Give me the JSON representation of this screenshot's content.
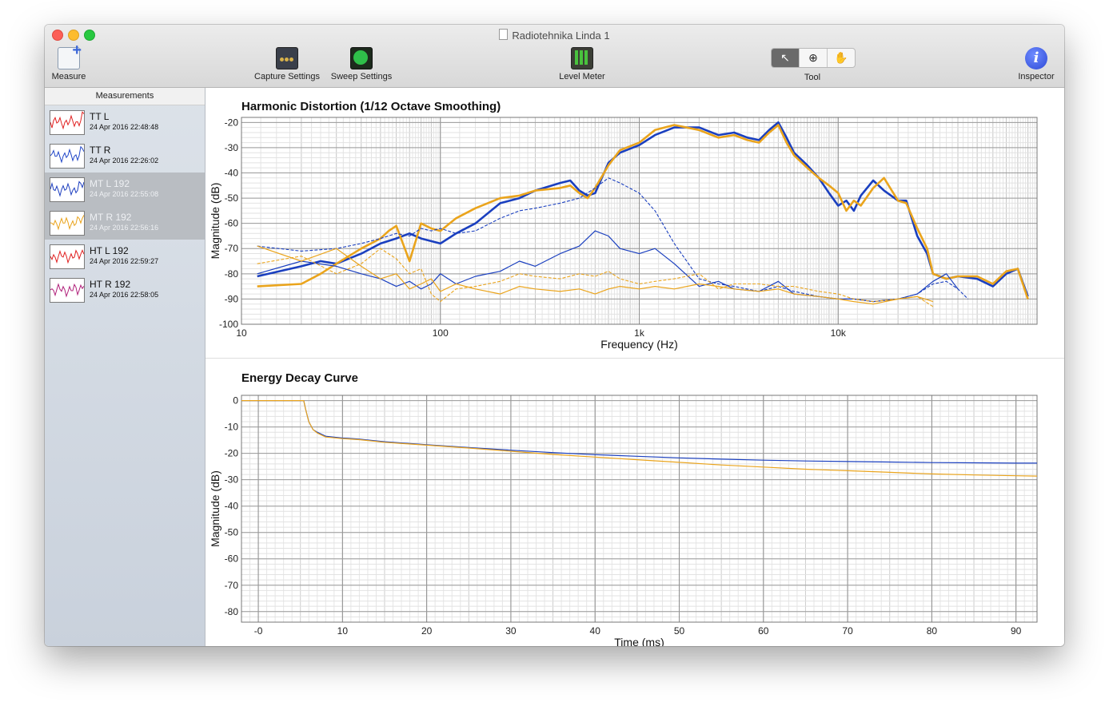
{
  "window": {
    "title": "Radiotehnika Linda 1"
  },
  "toolbar": {
    "measure_label": "Measure",
    "capture_label": "Capture Settings",
    "sweep_label": "Sweep Settings",
    "level_label": "Level Meter",
    "tool_label": "Tool",
    "inspector_label": "Inspector",
    "tool_modes": [
      "pointer-icon",
      "zoom-icon",
      "hand-icon"
    ],
    "tool_active": "pointer"
  },
  "sidebar": {
    "header": "Measurements",
    "items": [
      {
        "name": "TT L",
        "date": "24 Apr 2016 22:48:48",
        "color": "#e02020",
        "selected": false
      },
      {
        "name": "TT R",
        "date": "24 Apr 2016 22:26:02",
        "color": "#2046c8",
        "selected": false
      },
      {
        "name": "MT L 192",
        "date": "24 Apr 2016 22:55:08",
        "color": "#1e3fbf",
        "selected": true
      },
      {
        "name": "MT R 192",
        "date": "24 Apr 2016 22:56:16",
        "color": "#e9a21a",
        "selected": true
      },
      {
        "name": "HT L 192",
        "date": "24 Apr 2016 22:59:27",
        "color": "#e02020",
        "selected": false
      },
      {
        "name": "HT R 192",
        "date": "24 Apr 2016 22:58:05",
        "color": "#b0207a",
        "selected": false
      }
    ]
  },
  "colors": {
    "blue": "#1a3fbf",
    "orange": "#eaa41c"
  },
  "chart_data": [
    {
      "type": "line",
      "title": "Harmonic Distortion (1/12 Octave Smoothing)",
      "xlabel": "Frequency (Hz)",
      "ylabel": "Magnitude (dB)",
      "xscale": "log",
      "xlim": [
        10,
        100000
      ],
      "ylim": [
        -100,
        -18
      ],
      "xticks": [
        10,
        100,
        1000,
        10000
      ],
      "xtick_labels": [
        "10",
        "100",
        "1k",
        "10k"
      ],
      "yticks": [
        -20,
        -30,
        -40,
        -50,
        -60,
        -70,
        -80,
        -90,
        -100
      ],
      "grid": true,
      "series": [
        {
          "color": "blue",
          "style": "thick",
          "x": [
            12,
            20,
            25,
            30,
            40,
            50,
            60,
            70,
            80,
            100,
            120,
            150,
            200,
            250,
            300,
            400,
            450,
            500,
            550,
            600,
            700,
            800,
            1000,
            1200,
            1500,
            2000,
            2500,
            3000,
            3500,
            4000,
            4500,
            5000,
            5500,
            6000,
            7000,
            8000,
            9000,
            10000,
            11000,
            12000,
            13000,
            15000,
            17000,
            20000,
            22000,
            25000,
            28000,
            30000,
            35000,
            40000,
            50000,
            60000,
            70000,
            80000,
            90000
          ],
          "y": [
            -81,
            -77,
            -75,
            -76,
            -72,
            -68,
            -66,
            -64,
            -66,
            -68,
            -64,
            -60,
            -52,
            -50,
            -47,
            -44,
            -43,
            -47,
            -49,
            -48,
            -36,
            -32,
            -29,
            -25,
            -22,
            -22,
            -25,
            -24,
            -26,
            -27,
            -23,
            -20,
            -26,
            -32,
            -37,
            -42,
            -48,
            -53,
            -51,
            -55,
            -49,
            -43,
            -47,
            -51,
            -51,
            -65,
            -72,
            -80,
            -82,
            -81,
            -82,
            -85,
            -80,
            -78,
            -89
          ]
        },
        {
          "color": "orange",
          "style": "thick",
          "x": [
            12,
            20,
            25,
            30,
            40,
            50,
            55,
            60,
            70,
            80,
            90,
            100,
            120,
            150,
            200,
            250,
            300,
            400,
            450,
            500,
            550,
            600,
            700,
            800,
            1000,
            1200,
            1500,
            2000,
            2500,
            3000,
            3500,
            4000,
            4500,
            5000,
            5500,
            6000,
            7000,
            8000,
            9000,
            10000,
            11000,
            12000,
            13000,
            15000,
            17000,
            20000,
            22000,
            25000,
            28000,
            30000,
            35000,
            40000,
            50000,
            60000,
            70000,
            80000,
            90000
          ],
          "y": [
            -85,
            -84,
            -80,
            -76,
            -70,
            -66,
            -63,
            -61,
            -75,
            -60,
            -62,
            -63,
            -58,
            -54,
            -50,
            -49,
            -47,
            -46,
            -45,
            -48,
            -50,
            -46,
            -37,
            -31,
            -28,
            -23,
            -21,
            -23,
            -26,
            -25,
            -27,
            -28,
            -24,
            -21,
            -28,
            -33,
            -38,
            -42,
            -45,
            -48,
            -55,
            -51,
            -53,
            -46,
            -42,
            -51,
            -52,
            -62,
            -70,
            -80,
            -82,
            -81,
            -81,
            -84,
            -79,
            -78,
            -90
          ]
        },
        {
          "color": "blue",
          "style": "dashed",
          "x": [
            12,
            20,
            30,
            40,
            50,
            60,
            70,
            80,
            90,
            100,
            120,
            150,
            200,
            250,
            300,
            400,
            500,
            600,
            700,
            800,
            1000,
            1200,
            1500,
            2000,
            2500,
            3000,
            4000,
            5000,
            6000,
            8000,
            10000,
            12000,
            15000,
            20000,
            25000,
            30000,
            35000,
            40000,
            45000
          ],
          "y": [
            -69,
            -71,
            -70,
            -68,
            -66,
            -64,
            -65,
            -62,
            -63,
            -62,
            -64,
            -63,
            -58,
            -55,
            -54,
            -52,
            -50,
            -46,
            -42,
            -44,
            -48,
            -55,
            -68,
            -82,
            -84,
            -85,
            -87,
            -85,
            -87,
            -89,
            -90,
            -90,
            -91,
            -90,
            -88,
            -84,
            -83,
            -86,
            -90
          ]
        },
        {
          "color": "blue",
          "style": "thin",
          "x": [
            12,
            20,
            30,
            40,
            50,
            60,
            70,
            80,
            90,
            100,
            120,
            150,
            200,
            250,
            300,
            400,
            500,
            600,
            700,
            800,
            1000,
            1200,
            1500,
            2000,
            2500,
            3000,
            4000,
            5000,
            6000,
            8000,
            10000,
            12000,
            15000,
            20000,
            25000,
            30000,
            35000,
            40000
          ],
          "y": [
            -80,
            -75,
            -77,
            -80,
            -82,
            -85,
            -83,
            -86,
            -84,
            -80,
            -84,
            -81,
            -79,
            -75,
            -77,
            -72,
            -69,
            -63,
            -65,
            -70,
            -72,
            -70,
            -76,
            -85,
            -83,
            -86,
            -87,
            -83,
            -88,
            -89,
            -90,
            -90,
            -91,
            -90,
            -88,
            -83,
            -80,
            -86
          ]
        },
        {
          "color": "orange",
          "style": "dashed",
          "x": [
            12,
            20,
            30,
            40,
            50,
            60,
            70,
            80,
            90,
            100,
            120,
            150,
            200,
            250,
            300,
            400,
            500,
            600,
            700,
            800,
            1000,
            1200,
            1500,
            2000,
            2500,
            3000,
            4000,
            5000,
            6000,
            8000,
            10000,
            12000,
            15000,
            20000,
            25000,
            30000
          ],
          "y": [
            -76,
            -73,
            -80,
            -76,
            -70,
            -74,
            -80,
            -78,
            -88,
            -91,
            -86,
            -85,
            -83,
            -80,
            -81,
            -82,
            -80,
            -81,
            -79,
            -82,
            -84,
            -83,
            -82,
            -80,
            -86,
            -84,
            -84,
            -85,
            -85,
            -87,
            -88,
            -90,
            -91,
            -90,
            -89,
            -93
          ]
        },
        {
          "color": "orange",
          "style": "thin",
          "x": [
            12,
            20,
            30,
            40,
            50,
            60,
            70,
            80,
            90,
            100,
            120,
            150,
            200,
            250,
            300,
            400,
            500,
            600,
            700,
            800,
            1000,
            1200,
            1500,
            2000,
            2500,
            3000,
            4000,
            5000,
            6000,
            8000,
            10000,
            12000,
            15000,
            20000,
            25000,
            30000
          ],
          "y": [
            -69,
            -75,
            -70,
            -77,
            -82,
            -80,
            -86,
            -84,
            -82,
            -87,
            -84,
            -86,
            -88,
            -85,
            -86,
            -87,
            -86,
            -88,
            -86,
            -85,
            -86,
            -85,
            -86,
            -84,
            -85,
            -86,
            -87,
            -86,
            -88,
            -89,
            -90,
            -91,
            -92,
            -90,
            -89,
            -91
          ]
        }
      ]
    },
    {
      "type": "line",
      "title": "Energy Decay Curve",
      "xlabel": "Time (ms)",
      "ylabel": "Magnitude (dB)",
      "xlim": [
        -2,
        92.5
      ],
      "ylim": [
        -84,
        2
      ],
      "xticks": [
        0,
        10,
        20,
        30,
        40,
        50,
        60,
        70,
        80,
        90
      ],
      "xtick_labels": [
        "-0",
        "10",
        "20",
        "30",
        "40",
        "50",
        "60",
        "70",
        "80",
        "90"
      ],
      "yticks": [
        0,
        -10,
        -20,
        -30,
        -40,
        -50,
        -60,
        -70,
        -80
      ],
      "grid": true,
      "series": [
        {
          "color": "blue",
          "style": "thin",
          "x": [
            -2,
            5.4,
            5.6,
            6,
            6.5,
            7,
            8,
            10,
            12,
            15,
            20,
            25,
            30,
            35,
            40,
            45,
            50,
            55,
            60,
            65,
            70,
            75,
            80,
            85,
            90,
            92.5
          ],
          "y": [
            0,
            0,
            -3,
            -8,
            -11,
            -12,
            -13.5,
            -14.2,
            -14.6,
            -15.6,
            -16.7,
            -17.8,
            -18.8,
            -19.7,
            -20.5,
            -21.1,
            -21.7,
            -22.2,
            -22.6,
            -22.9,
            -23.1,
            -23.3,
            -23.5,
            -23.6,
            -23.7,
            -23.7
          ]
        },
        {
          "color": "orange",
          "style": "thin",
          "x": [
            -2,
            5.4,
            5.6,
            6,
            6.5,
            7,
            8,
            10,
            12,
            15,
            20,
            25,
            30,
            35,
            40,
            45,
            50,
            55,
            60,
            65,
            70,
            75,
            80,
            85,
            90,
            92.5
          ],
          "y": [
            0,
            0,
            -3,
            -8,
            -11,
            -12.3,
            -13.8,
            -14.4,
            -14.8,
            -15.8,
            -16.9,
            -18,
            -19.2,
            -20.4,
            -21.4,
            -22.4,
            -23.4,
            -24.4,
            -25.2,
            -26,
            -26.6,
            -27.2,
            -27.8,
            -28.2,
            -28.5,
            -28.6
          ]
        }
      ]
    }
  ]
}
